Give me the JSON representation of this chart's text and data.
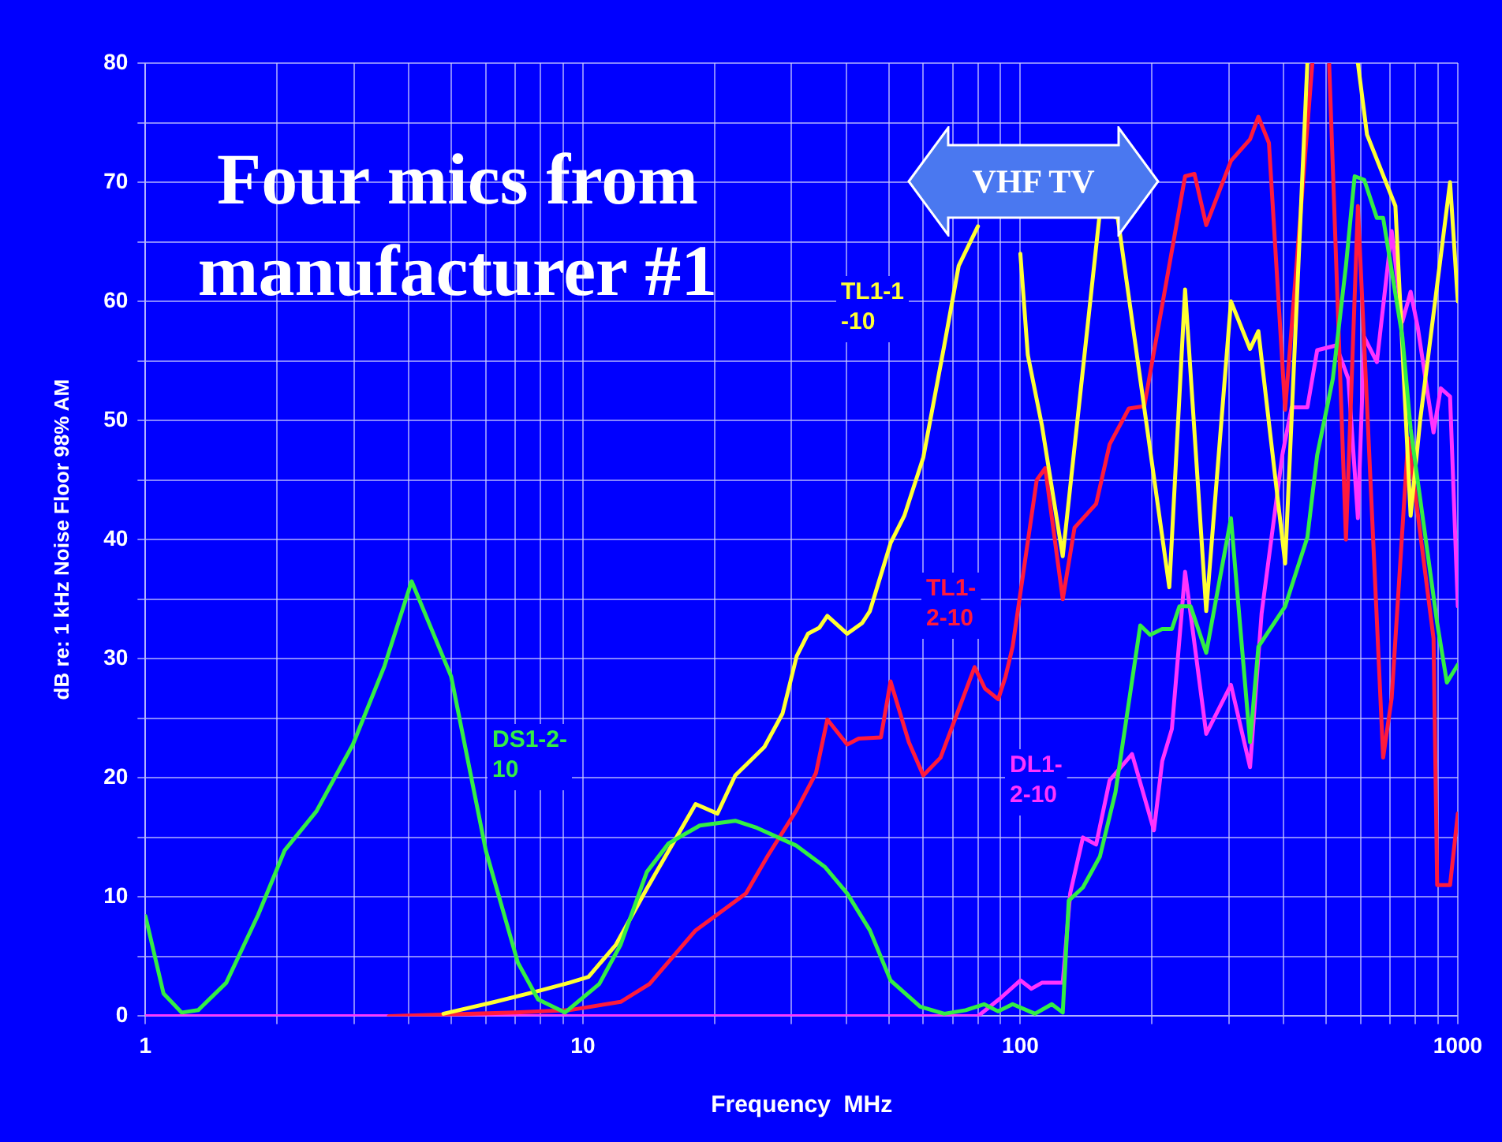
{
  "chart_data": {
    "type": "line",
    "title": "Four mics from manufacturer #1",
    "xlabel": "Frequency  MHz",
    "ylabel": "dB re: 1 kHz Noise Floor 98% AM",
    "log": "x",
    "grid": true,
    "marker": "none",
    "line_style": "solid",
    "xlim": [
      1,
      1000
    ],
    "xticks": [
      1,
      {
        "value": 2,
        "label": null
      },
      {
        "value": 3,
        "label": null
      },
      {
        "value": 4,
        "label": null
      },
      {
        "value": 5,
        "label": null
      },
      {
        "value": 6,
        "label": null
      },
      {
        "value": 7,
        "label": null
      },
      {
        "value": 8,
        "label": null
      },
      {
        "value": 9,
        "label": null
      },
      10,
      {
        "value": 20,
        "label": null
      },
      {
        "value": 30,
        "label": null
      },
      {
        "value": 40,
        "label": null
      },
      {
        "value": 50,
        "label": null
      },
      {
        "value": 60,
        "label": null
      },
      {
        "value": 70,
        "label": null
      },
      {
        "value": 80,
        "label": null
      },
      {
        "value": 90,
        "label": null
      },
      100,
      {
        "value": 200,
        "label": null
      },
      {
        "value": 300,
        "label": null
      },
      {
        "value": 400,
        "label": null
      },
      {
        "value": 500,
        "label": null
      },
      {
        "value": 600,
        "label": null
      },
      {
        "value": 700,
        "label": null
      },
      {
        "value": 800,
        "label": null
      },
      {
        "value": 900,
        "label": null
      },
      1000
    ],
    "ylim": [
      0,
      80
    ],
    "yticks": [
      0,
      {
        "value": 5,
        "label": null
      },
      10,
      {
        "value": 15,
        "label": null
      },
      20,
      {
        "value": 25,
        "label": null
      },
      30,
      {
        "value": 35,
        "label": null
      },
      40,
      {
        "value": 45,
        "label": null
      },
      50,
      {
        "value": 55,
        "label": null
      },
      60,
      {
        "value": 65,
        "label": null
      },
      70,
      {
        "value": 75,
        "label": null
      },
      80
    ],
    "annotations": [
      "VHF TV"
    ],
    "series": [
      {
        "name": "DS1-2-10",
        "color": "#33ee44",
        "x": [
          1,
          1.1,
          1.21,
          1.32,
          1.53,
          1.81,
          2.08,
          2.46,
          2.98,
          3.52,
          4.06,
          5,
          6,
          7.1,
          7.9,
          9.1,
          10.9,
          12.2,
          14,
          15.7,
          18.5,
          22.3,
          25,
          30.8,
          35.8,
          40.2,
          45.3,
          50.5,
          59,
          67,
          75,
          82.6,
          89,
          96,
          108,
          118,
          125,
          129,
          139,
          152,
          165,
          188,
          198,
          211,
          222,
          231,
          245,
          266,
          303,
          335,
          350,
          403,
          453,
          477,
          518,
          555,
          581,
          611,
          653,
          675,
          747,
          780,
          897,
          944,
          1000
        ],
        "values": [
          8.4,
          1.9,
          0.3,
          0.5,
          2.8,
          8.5,
          13.9,
          17.2,
          22.8,
          29.4,
          36.5,
          28.5,
          13.9,
          4.5,
          1.4,
          0.3,
          2.7,
          6,
          12.1,
          14.5,
          16,
          16.4,
          15.8,
          14.3,
          12.5,
          10.3,
          7.2,
          3,
          0.8,
          0.2,
          0.5,
          1,
          0.4,
          1,
          0.2,
          1,
          0.3,
          9.7,
          10.8,
          13.4,
          18.8,
          32.8,
          32,
          32.5,
          32.5,
          34.4,
          34.4,
          30.5,
          41.8,
          23,
          31,
          34.4,
          40.2,
          47.1,
          53.5,
          63,
          70.5,
          70.2,
          67,
          67,
          57,
          49.3,
          33,
          28,
          29.5
        ]
      },
      {
        "name": "TL1-1-10",
        "color": "#ffff33",
        "x": [
          4.8,
          6.3,
          7.9,
          9.3,
          10.3,
          11.9,
          14,
          18.1,
          20.3,
          22.3,
          26,
          28.6,
          30.8,
          32.7,
          34.7,
          36.2,
          40.2,
          43.5,
          45.3,
          50.5,
          54.3,
          60,
          67,
          72.3,
          80,
          88,
          95,
          100,
          104,
          112,
          125,
          152,
          167,
          219,
          238,
          266,
          303,
          335,
          350,
          403,
          453,
          520,
          591,
          620,
          720,
          780,
          820,
          960,
          1000
        ],
        "values": [
          0.2,
          1.2,
          2.1,
          2.8,
          3.3,
          6,
          10.7,
          17.8,
          17,
          20.2,
          22.6,
          25.4,
          30.2,
          32.1,
          32.6,
          33.6,
          32.1,
          33,
          34,
          39.7,
          42,
          46.9,
          56.3,
          63,
          66.3,
          null,
          null,
          64,
          55.5,
          49.6,
          38.6,
          67.5,
          67,
          36,
          61,
          34,
          60,
          56,
          57.5,
          38,
          80,
          null,
          80,
          74,
          68,
          42,
          50,
          70,
          60
        ]
      },
      {
        "name": "TL1-2-10",
        "color": "#ff1a3c",
        "x": [
          3.6,
          7,
          9.3,
          12.2,
          14.2,
          18.1,
          23.6,
          26.5,
          30.8,
          34.1,
          36.2,
          40.2,
          42.7,
          48,
          50.5,
          55.6,
          60,
          65.7,
          78.6,
          83,
          89,
          92.5,
          96,
          109,
          114,
          125,
          133,
          149,
          160,
          177,
          192,
          238,
          250,
          266,
          303,
          335,
          350,
          370,
          403,
          465,
          490,
          508,
          555,
          591,
          675,
          706,
          770,
          880,
          897,
          960,
          1000
        ],
        "values": [
          0,
          0.3,
          0.5,
          1.2,
          2.7,
          7.2,
          10.3,
          13.5,
          17.3,
          20.4,
          24.9,
          22.8,
          23.3,
          23.4,
          28.1,
          23,
          20.2,
          21.7,
          29.3,
          27.5,
          26.6,
          28.5,
          31,
          45,
          46,
          35,
          41,
          43,
          48,
          51,
          51.2,
          70.5,
          70.7,
          66.4,
          71.8,
          73.6,
          75.5,
          73.3,
          50.9,
          80,
          null,
          80,
          40,
          68,
          21.7,
          26.7,
          48.5,
          31.7,
          11,
          11,
          17
        ]
      },
      {
        "name": "DL1-2-10",
        "color": "#ff33ff",
        "x": [
          1,
          80,
          90,
          100,
          106,
          112,
          118,
          125,
          130,
          139,
          149,
          160,
          180,
          202,
          211,
          222,
          238,
          266,
          303,
          335,
          356,
          397,
          417,
          453,
          477,
          527,
          562,
          591,
          611,
          653,
          706,
          747,
          780,
          810,
          880,
          914,
          960,
          1000
        ],
        "values": [
          0,
          0,
          1.5,
          3,
          2.3,
          2.8,
          2.8,
          2.8,
          10.3,
          15,
          14.4,
          19.8,
          22,
          15.6,
          21.4,
          24.1,
          37.3,
          23.7,
          27.8,
          20.9,
          33.8,
          47.1,
          51.1,
          51.1,
          55.9,
          56.3,
          53.5,
          41.8,
          57,
          54.9,
          65.9,
          58.3,
          60.8,
          57.8,
          49,
          52.7,
          52,
          34.4
        ]
      }
    ]
  }
}
